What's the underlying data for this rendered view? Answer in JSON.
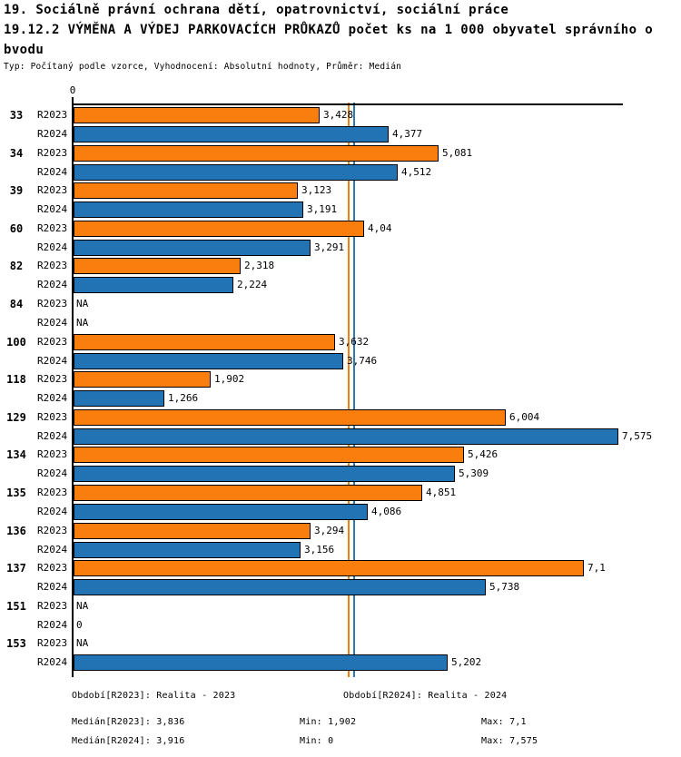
{
  "header": {
    "title_line1": "19. Sociálně právní ochrana dětí, opatrovnictví, sociální práce",
    "title_line2": "19.12.2 VÝMĚNA A VÝDEJ PARKOVACÍCH PRŮKAZŮ počet ks na 1 000 obyvatel správního o",
    "title_line3": "bvodu",
    "meta": "Typ: Počítaný podle vzorce, Vyhodnocení: Absolutní hodnoty, Průměr: Medián"
  },
  "chart_data": {
    "type": "bar",
    "orientation": "horizontal",
    "axis_zero_label": "0",
    "xlim": [
      0,
      7.64
    ],
    "grid": false,
    "categories": [
      "33",
      "34",
      "39",
      "60",
      "82",
      "84",
      "100",
      "118",
      "129",
      "134",
      "135",
      "136",
      "137",
      "151",
      "153"
    ],
    "series": [
      {
        "name": "R2023",
        "color": "#fa7e0e",
        "values": [
          3.428,
          5.081,
          3.123,
          4.04,
          2.318,
          null,
          3.632,
          1.902,
          6.004,
          5.426,
          4.851,
          3.294,
          7.1,
          null,
          null
        ],
        "labels": [
          "3,428",
          "5,081",
          "3,123",
          "4,04",
          "2,318",
          "NA",
          "3,632",
          "1,902",
          "6,004",
          "5,426",
          "4,851",
          "3,294",
          "7,1",
          "NA",
          "NA"
        ]
      },
      {
        "name": "R2024",
        "color": "#2173b4",
        "values": [
          4.377,
          4.512,
          3.191,
          3.291,
          2.224,
          null,
          3.746,
          1.266,
          7.575,
          5.309,
          4.086,
          3.156,
          5.738,
          0,
          5.202
        ],
        "labels": [
          "4,377",
          "4,512",
          "3,191",
          "3,291",
          "2,224",
          "NA",
          "3,746",
          "1,266",
          "7,575",
          "5,309",
          "4,086",
          "3,156",
          "5,738",
          "0",
          "5,202"
        ]
      }
    ],
    "median_lines": [
      {
        "name": "R2023",
        "value": 3.836,
        "color": "#ef820f"
      },
      {
        "name": "R2024",
        "value": 3.916,
        "color": "#2e7bb0"
      }
    ]
  },
  "footer": {
    "legend_r2023": "Období[R2023]: Realita - 2023",
    "legend_r2024": "Období[R2024]: Realita - 2024",
    "stats": [
      {
        "median": "Medián[R2023]: 3,836",
        "min": "Min: 1,902",
        "max": "Max: 7,1"
      },
      {
        "median": "Medián[R2024]: 3,916",
        "min": "Min: 0",
        "max": "Max: 7,575"
      }
    ]
  }
}
